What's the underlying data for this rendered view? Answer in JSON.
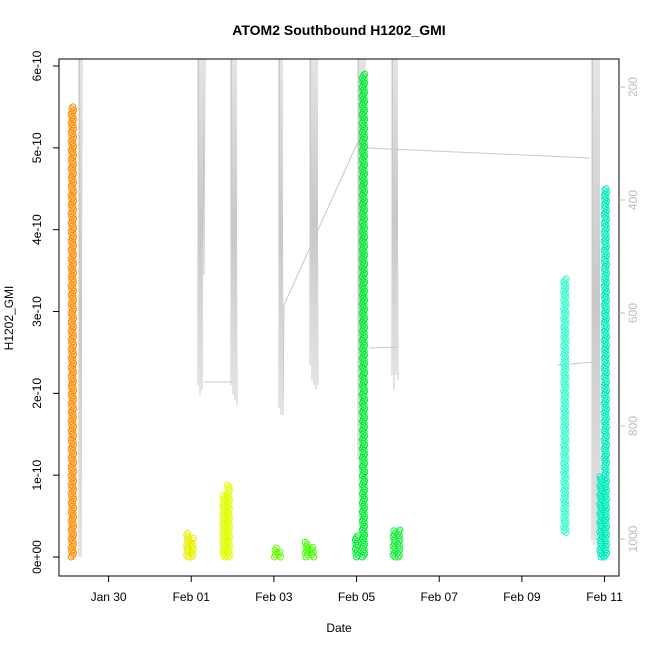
{
  "chart_data": {
    "type": "scatter",
    "title": "ATOM2 Southbound H1202_GMI",
    "xlabel": "Date",
    "ylabel": "H1202_GMI",
    "x_ticks": [
      "Jan 30",
      "Feb 01",
      "Feb 03",
      "Feb 05",
      "Feb 07",
      "Feb 09",
      "Feb 11"
    ],
    "y_ticks": [
      "0e+00",
      "1e-10",
      "2e-10",
      "3e-10",
      "4e-10",
      "5e-10",
      "6e-10"
    ],
    "y_tick_values": [
      0,
      1e-10,
      2e-10,
      3e-10,
      4e-10,
      5e-10,
      6e-10
    ],
    "ylim": [
      0,
      6e-10
    ],
    "xlim": [
      "2016-01-28T19:12",
      "2016-02-11T08:24"
    ],
    "right_axis": {
      "label": "",
      "ticks": [
        "200",
        "400",
        "600",
        "800",
        "1000"
      ],
      "tick_values": [
        200,
        400,
        600,
        800,
        1000
      ],
      "range": [
        160,
        1050
      ],
      "inverted": true,
      "color": "#bdbdbd"
    },
    "series": [
      {
        "x": "2016-01-29T03:00",
        "ymin": 0,
        "ymax": 5.5e-10,
        "color": "#ff8c00"
      },
      {
        "x": "2016-01-31T22:00",
        "ymin": 0,
        "ymax": 2.9e-11,
        "color": "#e8f000"
      },
      {
        "x": "2016-02-01T00:30",
        "ymin": 0,
        "ymax": 2.3e-11,
        "color": "#e8f000"
      },
      {
        "x": "2016-02-01T19:00",
        "ymin": 0,
        "ymax": 7.5e-11,
        "color": "#e0ff00"
      },
      {
        "x": "2016-02-01T21:30",
        "ymin": 0,
        "ymax": 8.8e-11,
        "color": "#e0ff00"
      },
      {
        "x": "2016-02-03T01:00",
        "ymin": 0,
        "ymax": 1.1e-11,
        "color": "#66ff00"
      },
      {
        "x": "2016-02-03T03:30",
        "ymin": 0,
        "ymax": 6e-12,
        "color": "#66ff00"
      },
      {
        "x": "2016-02-03T19:00",
        "ymin": 0,
        "ymax": 1.8e-11,
        "color": "#44ff00"
      },
      {
        "x": "2016-02-03T22:30",
        "ymin": 0,
        "ymax": 1.2e-11,
        "color": "#44ff00"
      },
      {
        "x": "2016-02-05T00:00",
        "ymin": 0,
        "ymax": 2.6e-11,
        "color": "#00ee33"
      },
      {
        "x": "2016-02-05T04:00",
        "ymin": 0,
        "ymax": 5.9e-10,
        "color": "#00ee33"
      },
      {
        "x": "2016-02-05T22:00",
        "ymin": 0,
        "ymax": 3.2e-11,
        "color": "#22ee44"
      },
      {
        "x": "2016-02-06T00:30",
        "ymin": 0,
        "ymax": 3.3e-11,
        "color": "#22ee44"
      },
      {
        "x": "2016-02-10T01:00",
        "ymin": 3e-11,
        "ymax": 3.4e-10,
        "color": "#33ffcc"
      },
      {
        "x": "2016-02-10T22:00",
        "ymin": 0,
        "ymax": 9.8e-11,
        "color": "#00eebb"
      },
      {
        "x": "2016-02-11T00:30",
        "ymin": 0,
        "ymax": 4.5e-10,
        "color": "#00eebb"
      }
    ]
  }
}
